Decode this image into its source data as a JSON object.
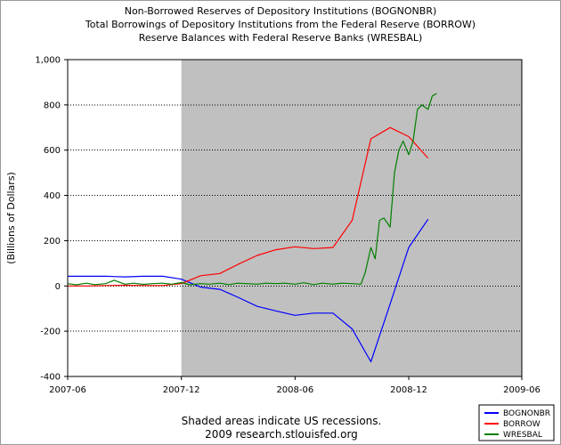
{
  "chart_data": {
    "type": "line",
    "title": [
      "Non-Borrowed Reserves of Depository Institutions (BOGNONBR)",
      "Total Borrowings of Depository Institutions from the Federal Reserve (BORROW)",
      "Reserve Balances with Federal Reserve Banks (WRESBAL)"
    ],
    "ylabel": "(Billions of Dollars)",
    "xlabel": "",
    "x_range": [
      "2007-06",
      "2009-06"
    ],
    "x_ticks": [
      "2007-06",
      "2007-12",
      "2008-06",
      "2008-12",
      "2009-06"
    ],
    "ylim": [
      -400,
      1000
    ],
    "y_ticks": [
      -400,
      -200,
      0,
      200,
      400,
      600,
      800,
      1000
    ],
    "y_tick_labels": [
      "-400",
      "-200",
      "0",
      "200",
      "400",
      "600",
      "800",
      "1,000"
    ],
    "grid": "horizontal",
    "recession": {
      "start": "2007-12",
      "end": "2009-06"
    },
    "legend_position": "bottom-right",
    "series": [
      {
        "name": "BOGNONBR",
        "color": "#0000ff",
        "x": [
          "2007-06",
          "2007-07",
          "2007-08",
          "2007-09",
          "2007-10",
          "2007-11",
          "2007-12",
          "2008-01",
          "2008-02",
          "2008-03",
          "2008-04",
          "2008-05",
          "2008-06",
          "2008-07",
          "2008-08",
          "2008-09",
          "2008-10",
          "2008-11",
          "2008-12",
          "2009-01"
        ],
        "values": [
          43,
          43,
          43,
          40,
          43,
          43,
          30,
          -5,
          -15,
          -50,
          -90,
          -110,
          -130,
          -120,
          -120,
          -190,
          -335,
          -80,
          170,
          295
        ]
      },
      {
        "name": "BORROW",
        "color": "#ff0000",
        "x": [
          "2007-06",
          "2007-07",
          "2007-08",
          "2007-09",
          "2007-10",
          "2007-11",
          "2007-12",
          "2008-01",
          "2008-02",
          "2008-03",
          "2008-04",
          "2008-05",
          "2008-06",
          "2008-07",
          "2008-08",
          "2008-09",
          "2008-10",
          "2008-11",
          "2008-12",
          "2009-01"
        ],
        "values": [
          0,
          0,
          2,
          3,
          2,
          2,
          10,
          45,
          55,
          95,
          135,
          160,
          173,
          165,
          170,
          290,
          650,
          700,
          660,
          565
        ]
      },
      {
        "name": "WRESBAL",
        "color": "#007f00",
        "x": [
          "2007-06-01",
          "2007-06-15",
          "2007-07-01",
          "2007-07-15",
          "2007-08-01",
          "2007-08-15",
          "2007-09-01",
          "2007-09-15",
          "2007-10-01",
          "2007-10-15",
          "2007-11-01",
          "2007-11-15",
          "2007-12-01",
          "2007-12-15",
          "2008-01-01",
          "2008-01-15",
          "2008-02-01",
          "2008-02-15",
          "2008-03-01",
          "2008-03-15",
          "2008-04-01",
          "2008-04-15",
          "2008-05-01",
          "2008-05-15",
          "2008-06-01",
          "2008-06-15",
          "2008-07-01",
          "2008-07-15",
          "2008-08-01",
          "2008-08-15",
          "2008-09-01",
          "2008-09-15",
          "2008-09-22",
          "2008-10-01",
          "2008-10-08",
          "2008-10-15",
          "2008-10-22",
          "2008-11-01",
          "2008-11-08",
          "2008-11-15",
          "2008-11-22",
          "2008-12-01",
          "2008-12-08",
          "2008-12-15",
          "2008-12-22",
          "2009-01-01",
          "2009-01-08",
          "2009-01-15"
        ],
        "values": [
          10,
          5,
          12,
          6,
          10,
          25,
          8,
          12,
          7,
          10,
          12,
          8,
          15,
          5,
          10,
          8,
          12,
          6,
          12,
          10,
          8,
          12,
          10,
          12,
          8,
          14,
          6,
          12,
          8,
          12,
          10,
          8,
          60,
          170,
          120,
          290,
          300,
          260,
          500,
          600,
          640,
          580,
          640,
          780,
          800,
          780,
          840,
          850
        ]
      }
    ],
    "notes": [
      "Shaded areas indicate US recessions.",
      "2009 research.stlouisfed.org"
    ]
  }
}
